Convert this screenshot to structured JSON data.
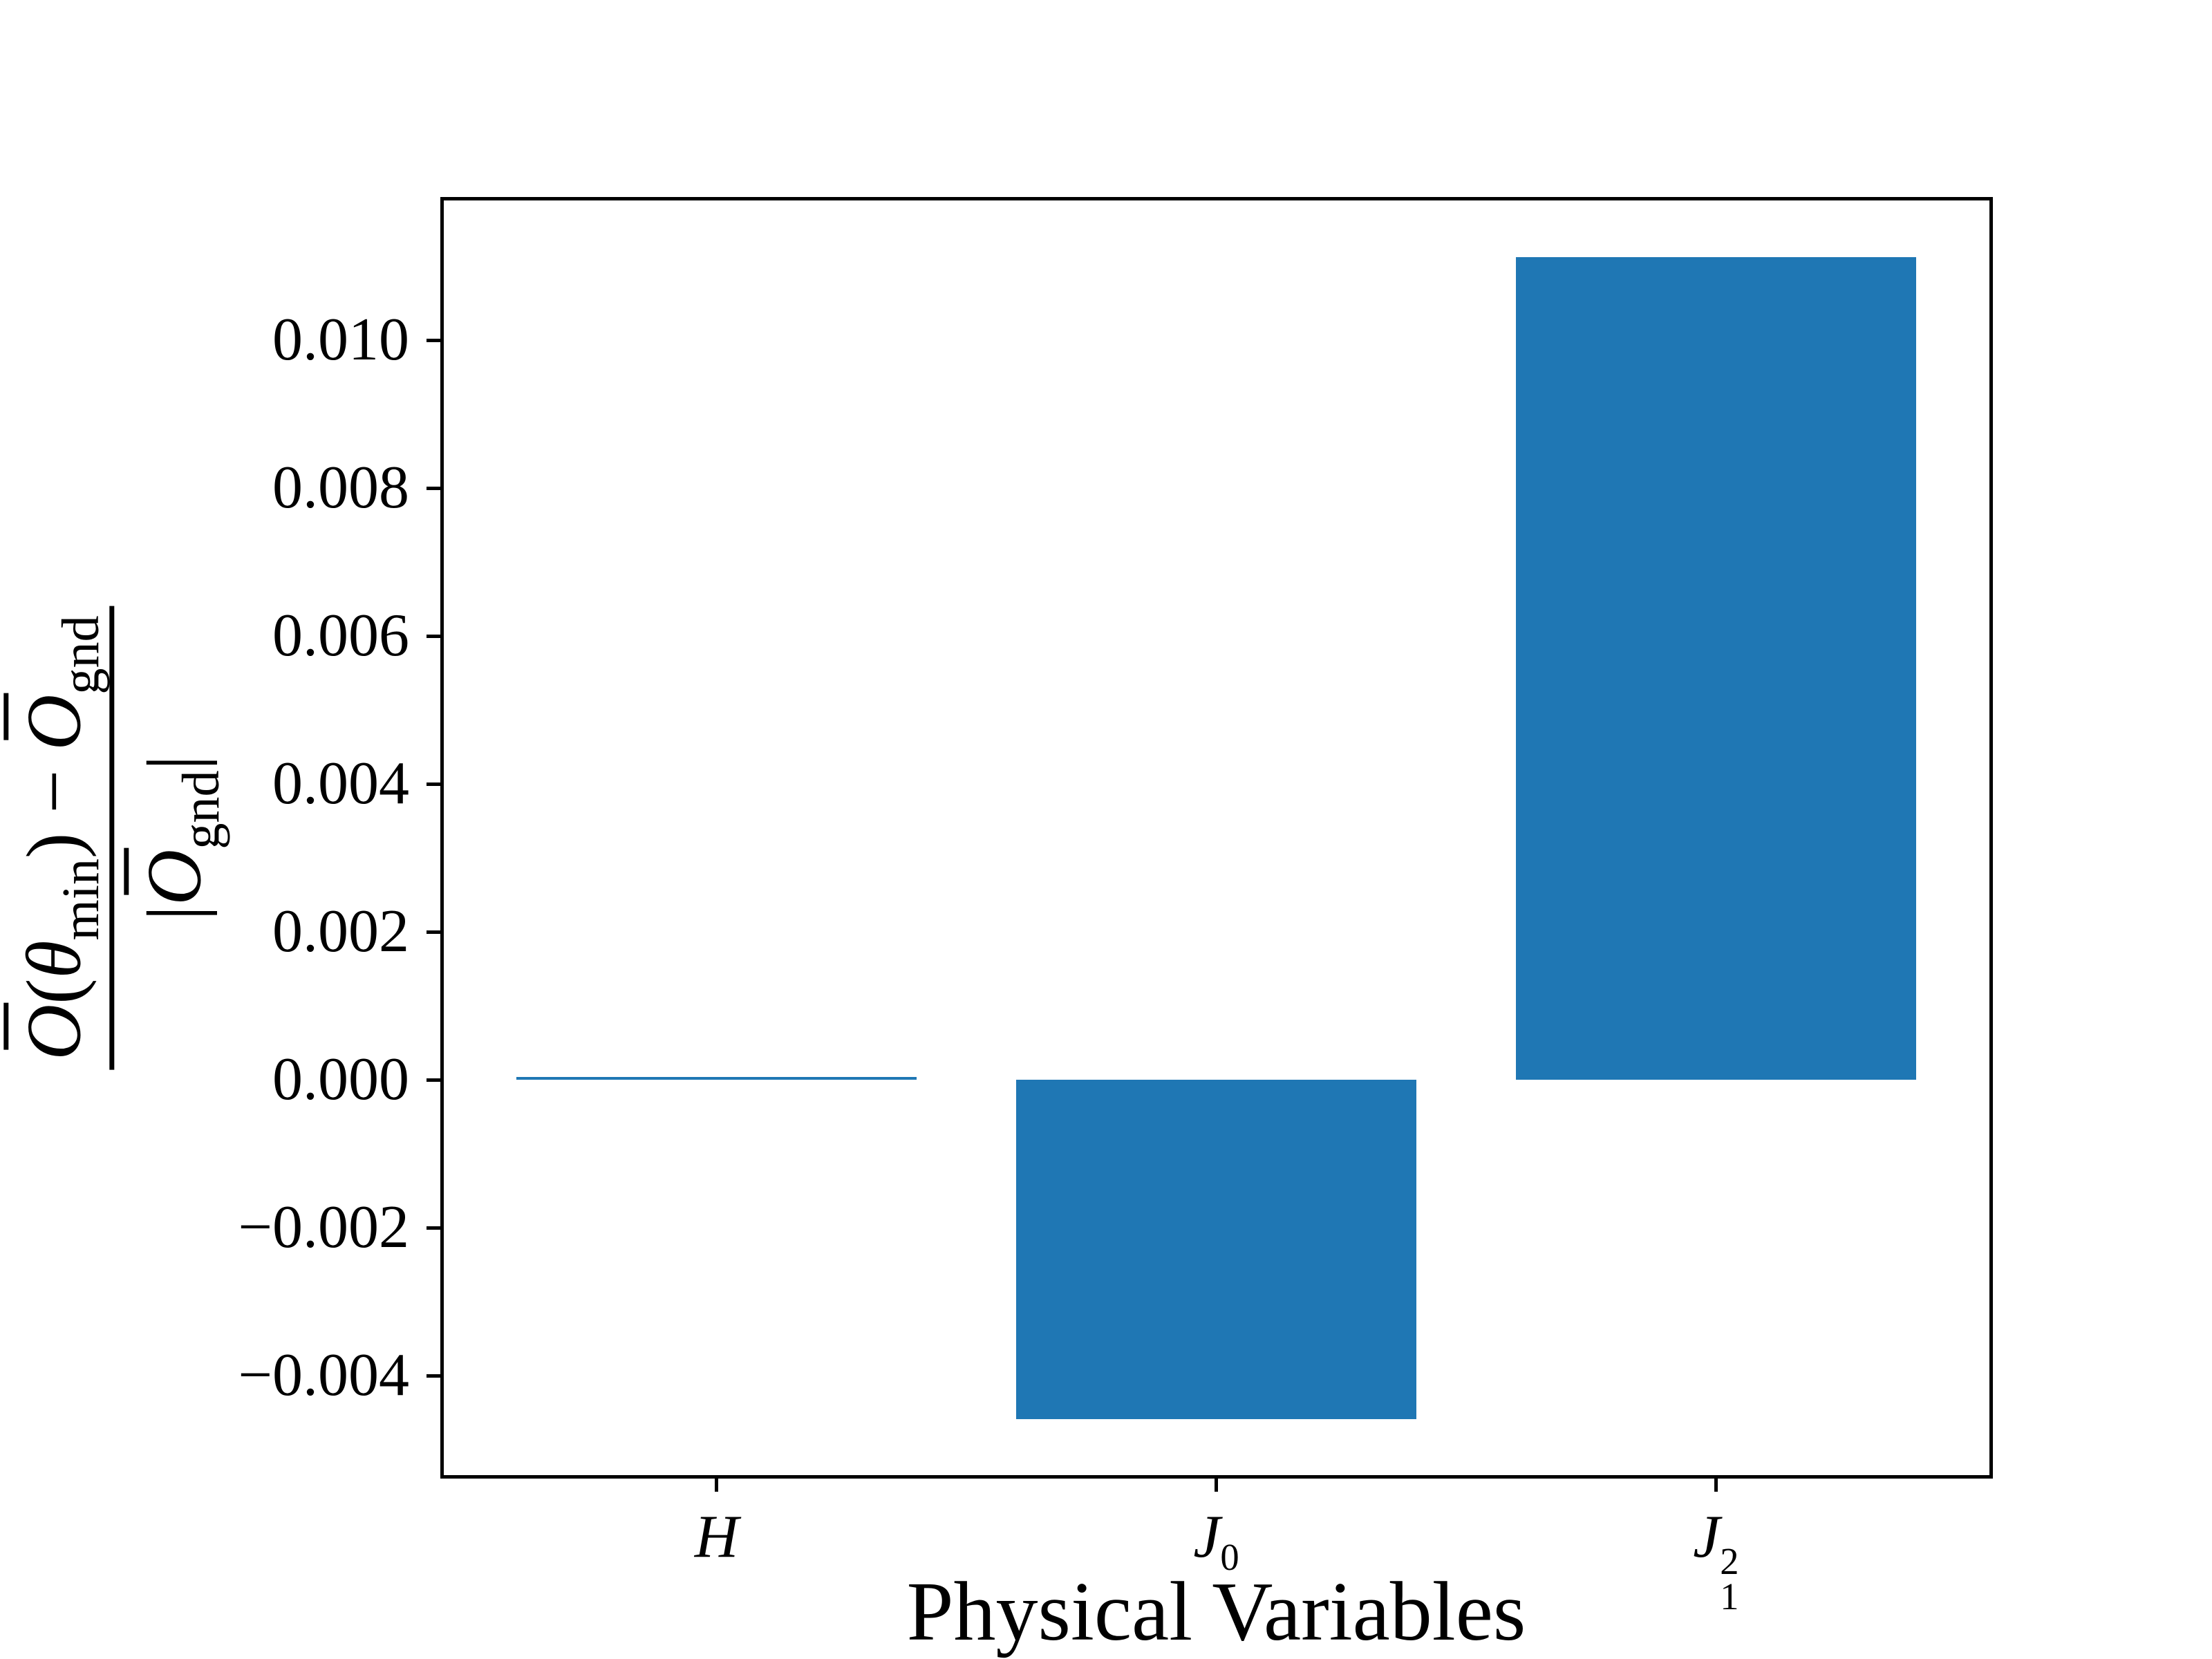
{
  "chart_data": {
    "type": "bar",
    "title": "",
    "xlabel": "Physical Variables",
    "categories": [
      {
        "base": "H",
        "sub": "",
        "sup": ""
      },
      {
        "base": "J",
        "sub": "0",
        "sup": ""
      },
      {
        "base": "J",
        "sub": "1",
        "sup": "2"
      }
    ],
    "values": [
      4e-05,
      -0.00458,
      0.01113
    ],
    "bar_color": "#1f77b4",
    "ylim": [
      -0.00536,
      0.01192
    ],
    "xlim": [
      -0.55,
      2.55
    ],
    "bar_width": 0.8,
    "grid": false,
    "legend_position": "none",
    "yticks": [
      {
        "value": 0.01,
        "label": "0.010"
      },
      {
        "value": 0.008,
        "label": "0.008"
      },
      {
        "value": 0.006,
        "label": "0.006"
      },
      {
        "value": 0.004,
        "label": "0.004"
      },
      {
        "value": 0.002,
        "label": "0.002"
      },
      {
        "value": 0.0,
        "label": "0.000"
      },
      {
        "value": -0.002,
        "label": "−0.002"
      },
      {
        "value": -0.004,
        "label": "−0.004"
      }
    ],
    "y_axis_label": {
      "num_o": "O",
      "num_open_paren": "(",
      "num_theta": "θ",
      "num_theta_sub": "min",
      "num_close_paren": ")",
      "num_minus": " − ",
      "num_o2": "O",
      "num_o2_sub": "gnd",
      "den_open_bar": "|",
      "den_o": "O",
      "den_o_sub": "gnd",
      "den_close_bar": "|"
    }
  }
}
